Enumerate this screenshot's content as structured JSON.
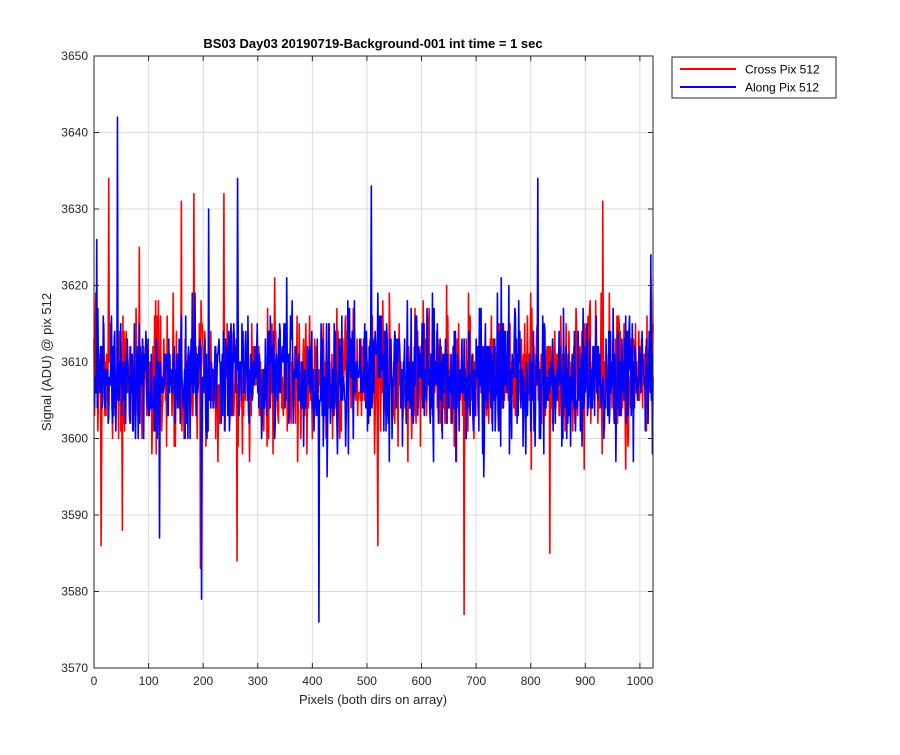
{
  "chart_data": {
    "type": "line",
    "title": "BS03 Day03 20190719-Background-001 int time = 1 sec",
    "xlabel": "Pixels (both dirs on array)",
    "ylabel": "Signal (ADU) @ pix 512",
    "xlim": [
      0,
      1024
    ],
    "ylim": [
      3570,
      3650
    ],
    "xticks": [
      0,
      100,
      200,
      300,
      400,
      500,
      600,
      700,
      800,
      900,
      1000
    ],
    "yticks": [
      3570,
      3580,
      3590,
      3600,
      3610,
      3620,
      3630,
      3640,
      3650
    ],
    "grid": true,
    "legend_location": "outside-top-right",
    "series": [
      {
        "name": "Cross Pix 512",
        "color": "#ff0000",
        "baseline": 3608,
        "noise_amplitude": 6,
        "seed": 7,
        "notable_points": [
          {
            "x": 3,
            "y": 3619
          },
          {
            "x": 13,
            "y": 3586
          },
          {
            "x": 27,
            "y": 3634
          },
          {
            "x": 52,
            "y": 3588
          },
          {
            "x": 83,
            "y": 3625
          },
          {
            "x": 160,
            "y": 3631
          },
          {
            "x": 183,
            "y": 3632
          },
          {
            "x": 195,
            "y": 3583
          },
          {
            "x": 238,
            "y": 3632
          },
          {
            "x": 262,
            "y": 3584
          },
          {
            "x": 520,
            "y": 3586
          },
          {
            "x": 678,
            "y": 3577
          },
          {
            "x": 835,
            "y": 3585
          },
          {
            "x": 932,
            "y": 3631
          },
          {
            "x": 1020,
            "y": 3621
          }
        ]
      },
      {
        "name": "Along Pix 512",
        "color": "#0000ff",
        "baseline": 3608,
        "noise_amplitude": 6,
        "seed": 19,
        "notable_points": [
          {
            "x": 5,
            "y": 3626
          },
          {
            "x": 43,
            "y": 3642
          },
          {
            "x": 120,
            "y": 3587
          },
          {
            "x": 197,
            "y": 3579
          },
          {
            "x": 210,
            "y": 3630
          },
          {
            "x": 263,
            "y": 3634
          },
          {
            "x": 412,
            "y": 3576
          },
          {
            "x": 508,
            "y": 3633
          },
          {
            "x": 813,
            "y": 3634
          },
          {
            "x": 1020,
            "y": 3624
          }
        ]
      }
    ]
  }
}
